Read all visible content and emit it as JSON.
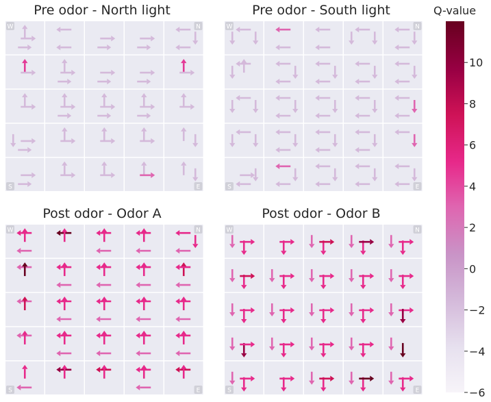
{
  "chart_data": {
    "type": "heatmap",
    "description_grid": "5x5 grid-world policy maps; each cell shows action arrows colored by Q-value",
    "panels": [
      {
        "title": "Pre odor - North light",
        "corners": {
          "top_left": "W",
          "top_right": "N",
          "bottom_left": "S",
          "bottom_right": "E"
        },
        "cells": [
          [
            {
              "r": [
                2
              ],
              "u": [
                3
              ],
              "l": null,
              "d": null,
              "r2": [
                2
              ]
            },
            {
              "l": [
                1
              ],
              "u": null,
              "r": null,
              "d": null,
              "l2": [
                1
              ]
            },
            {
              "r": [
                2
              ],
              "r2": [
                2
              ]
            },
            {
              "r": [
                2
              ],
              "r2": [
                2
              ]
            },
            {
              "l": [
                2
              ],
              "d": [
                2
              ],
              "l2": [
                2
              ]
            }
          ],
          [
            {
              "u": [
                6
              ],
              "r": [
                2
              ]
            },
            {
              "u": [
                2
              ],
              "r": [
                2
              ],
              "r2": [
                2
              ]
            },
            {
              "r": [
                2
              ],
              "r2": [
                2
              ]
            },
            {
              "r": [
                2
              ],
              "r2": [
                2
              ]
            },
            {
              "u": [
                6
              ],
              "r": [
                2
              ]
            }
          ],
          [
            {
              "u": [
                2
              ],
              "r": [
                2
              ]
            },
            {
              "u": [
                2
              ],
              "r": [
                2
              ],
              "r2": [
                2
              ]
            },
            {
              "u": [
                2
              ],
              "r": [
                2
              ],
              "r2": [
                2
              ]
            },
            {
              "u": [
                2
              ],
              "r": [
                2
              ],
              "r2": [
                2
              ]
            },
            {
              "u": [
                2
              ],
              "r": [
                2
              ]
            }
          ],
          [
            {
              "l": [
                2
              ],
              "r": [
                2
              ]
            },
            {
              "u": [
                2
              ],
              "r": [
                2
              ]
            },
            {
              "u": [
                2
              ],
              "r": [
                2
              ]
            },
            {
              "u": [
                2
              ],
              "r": [
                2
              ]
            },
            {
              "u": [
                2
              ],
              "d": [
                2
              ]
            }
          ],
          [
            {
              "r": [
                2
              ],
              "r2": [
                2
              ]
            },
            {
              "u": [
                2
              ],
              "r": [
                2
              ]
            },
            {
              "u": [
                2
              ],
              "r": [
                2
              ]
            },
            {
              "u": [
                2
              ],
              "r": [
                6
              ]
            },
            {
              "u": [
                2
              ],
              "d": [
                2
              ]
            }
          ]
        ]
      },
      {
        "title": "Pre odor - South light",
        "corners": {
          "top_left": "W",
          "top_right": "N",
          "bottom_left": "S",
          "bottom_right": "E"
        }
      },
      {
        "title": "Post odor - Odor A",
        "corners": {
          "top_left": "W",
          "top_right": "N",
          "bottom_left": "S",
          "bottom_right": "E"
        }
      },
      {
        "title": "Post odor - Odor B",
        "corners": {
          "top_left": "W",
          "top_right": "N",
          "bottom_left": "S",
          "bottom_right": "E"
        }
      }
    ],
    "colorbar": {
      "label": "Q-value",
      "min": -6,
      "max": 12,
      "ticks": [
        -6,
        -4,
        -2,
        0,
        2,
        4,
        6,
        8,
        10
      ],
      "colormap": [
        "#f7f4f9",
        "#e7e1ef",
        "#d4b9da",
        "#c994c7",
        "#df65b0",
        "#e7298a",
        "#ce1256",
        "#980043",
        "#67001f"
      ]
    }
  },
  "panel_arrows": {
    "p0": [
      [
        "U1,R1,R1b",
        "L1,L1b",
        "R1,R1b",
        "R1,R1b",
        "L1,Dr1,L1b"
      ],
      [
        "U5,R1",
        "U1,R1,R1b",
        "R1,R1b",
        "R1,R1b",
        "U5,R1"
      ],
      [
        "U1,R1",
        "U1,R1,R1b",
        "U1,R1,R1b",
        "U1,R1,R1b",
        "U1,R1"
      ],
      [
        "Dl1,R1,R1b",
        "U1,R1",
        "U1,R1",
        "U1,R1",
        "U1,Dr1"
      ],
      [
        "R1,R1b",
        "U1,R1",
        "U1,R1",
        "U1,R4",
        "U1,Dr1"
      ]
    ],
    "p1": [
      [
        "Dl1,Dr1,L1",
        "L4,L1b",
        "L1,L1b",
        "Dl1,Dr1,L1",
        "L1,Dr1,L1b"
      ],
      [
        "Dl1,L1,U1",
        "L1,Dr1,L1b",
        "L1,Dr1,L1b",
        "L1,Dr1,L1b",
        "L1,Dr1,L1b"
      ],
      [
        "Dl1,Dr1,L1",
        "L1,Dr1,L1b",
        "L1,Dr1,L1b",
        "L1,Dr1,L1b",
        "L1,Dr4,L1b"
      ],
      [
        "Dl1,Dr1,L1",
        "L1,Dr1,L1b",
        "L1,Dr1,L1b",
        "L1,Dr1,L1b",
        "L1,Dr4"
      ],
      [
        "R1,Dr1,L1b",
        "L4,Dr1,L1b",
        "L1,Dr1,L1b",
        "L1,Dr1,L1b",
        "L1,Dr1,L1b"
      ]
    ],
    "p2": [
      [
        "U6,L6,L4b",
        "L9,U6",
        "U6,L6,L4b",
        "U6,L6,L4b",
        "L6,Dr6,L4b"
      ],
      [
        "L4,U9",
        "U6,L6,L4b",
        "U6,L6,L4b",
        "U6,L6,L4b",
        "U7,L6,L4b"
      ],
      [
        "L4,U7",
        "U6,L6,L4b",
        "U6,L6,L4b",
        "U6,L6,L4b",
        "U6,L6,L4b"
      ],
      [
        "L4,U6",
        "U6,L6,L4b",
        "U6,L6,L4b",
        "U6,L6,L4b",
        "U6,L6,L4b"
      ],
      [
        "U6,L4b",
        "L8,U6",
        "L7,U6",
        "U6,L6,L4b",
        "L7,U6"
      ]
    ],
    "p3": [
      [
        "Dl4,D6,R6",
        "R6,D6",
        "Dl4,D6,R7",
        "Dl4,D6,R8",
        "Dl4,D6,R6"
      ],
      [
        "Dl4,D6,R7",
        "Dl4,D6,R6",
        "Dl4,D6,R6",
        "Dl4,D6,R6",
        "Dl4,D6,R6"
      ],
      [
        "Dl4,D6,R6",
        "Dl4,D6,R6",
        "Dl4,D6,R6",
        "Dl4,D6,R6",
        "Dl4,D6,R6,D8"
      ],
      [
        "Dl4,D8,R6",
        "Dl4,D6,R6",
        "Dl4,D6,R6",
        "Dl4,D6,R6",
        "Dl4,D9"
      ],
      [
        "Dl4,D6,R6",
        "R6,D6",
        "Dl4,D6,R7",
        "Dl4,D6,R9",
        "Dl4,D6,R6"
      ]
    ]
  }
}
